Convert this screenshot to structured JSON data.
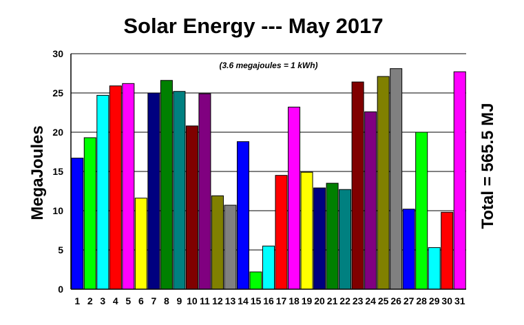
{
  "chart_data": {
    "type": "bar",
    "title": "Solar Energy --- May 2017",
    "ylabel": "MegaJoules",
    "annotation": "(3.6 megajoules = 1 kWh)",
    "total_label": "Total = 565.5 MJ",
    "ylim": [
      0,
      30
    ],
    "yticks": [
      0,
      5,
      10,
      15,
      20,
      25,
      30
    ],
    "grid": "horizontal",
    "categories": [
      "1",
      "2",
      "3",
      "4",
      "5",
      "6",
      "7",
      "8",
      "9",
      "10",
      "11",
      "12",
      "13",
      "14",
      "15",
      "16",
      "17",
      "18",
      "19",
      "20",
      "21",
      "22",
      "23",
      "24",
      "25",
      "26",
      "27",
      "28",
      "29",
      "30",
      "31"
    ],
    "values": [
      16.7,
      19.3,
      24.7,
      25.9,
      26.2,
      11.6,
      25.0,
      26.6,
      25.2,
      20.8,
      24.9,
      11.9,
      10.7,
      18.8,
      2.2,
      5.5,
      14.5,
      23.2,
      14.9,
      12.9,
      13.5,
      12.7,
      26.4,
      22.6,
      27.1,
      28.1,
      10.2,
      20.0,
      5.3,
      9.8,
      27.7
    ],
    "colors": [
      "#0000ff",
      "#00ff00",
      "#00ffff",
      "#ff0000",
      "#ff00ff",
      "#ffff00",
      "#000080",
      "#008000",
      "#008080",
      "#800000",
      "#800080",
      "#808000",
      "#808080",
      "#0000ff",
      "#00ff00",
      "#00ffff",
      "#ff0000",
      "#ff00ff",
      "#ffff00",
      "#000080",
      "#008000",
      "#008080",
      "#800000",
      "#800080",
      "#808000",
      "#808080",
      "#0000ff",
      "#00ff00",
      "#00ffff",
      "#ff0000",
      "#ff00ff"
    ]
  }
}
